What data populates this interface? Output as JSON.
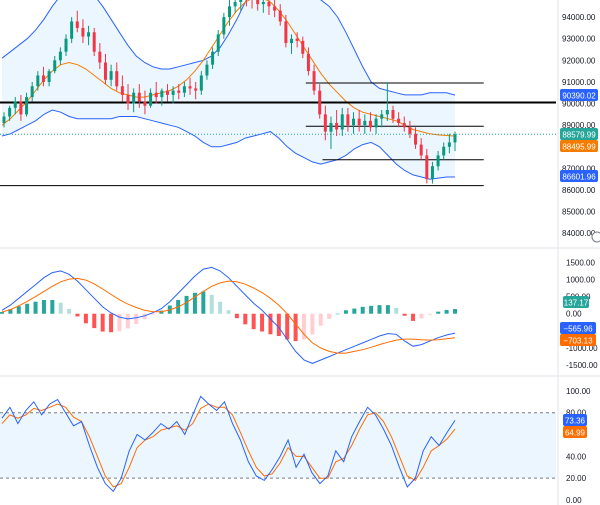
{
  "colors": {
    "up": "#089981",
    "down": "#f23645",
    "bb_line": "#2962ff",
    "bb_fill": "#e3f2fd",
    "ema": "#f57c00",
    "last_price_dotted": "#26a69a",
    "hline": "#000000",
    "macd_line": "#2962ff",
    "signal_line": "#ff6d00",
    "hist_up_strong": "#26a69a",
    "hist_up_weak": "#b2dfdb",
    "hist_down_strong": "#ff5252",
    "hist_down_weak": "#ffcdd2",
    "stoch_k": "#2962ff",
    "stoch_d": "#ff6d00",
    "stoch_band_fill": "#e3f2fd",
    "stoch_band_line": "#787b86",
    "axis_text": "#131722",
    "grid": "#f0f3fa"
  },
  "axis_labels": {
    "price": [
      "94000.00",
      "93000.00",
      "92000.00",
      "91000.00",
      "90000.00",
      "89000.00",
      "88000.00",
      "87000.00",
      "86000.00",
      "85000.00",
      "84000.00"
    ],
    "macd": [
      "1500.00",
      "1000.00",
      "500.00",
      "0.00",
      "-500.00",
      "-1000.00",
      "-1500.00"
    ],
    "stoch": [
      "100.00",
      "80.00",
      "60.00",
      "40.00",
      "20.00",
      "0.00"
    ]
  },
  "badges": {
    "bb_upper": "90390.02",
    "close": "88579.99",
    "ema": "88495.99",
    "bb_lower": "86601.96",
    "macd_hist": "137.17",
    "macd_line": "−565.96",
    "macd_signal": "−703.13",
    "stoch_k": "73.36",
    "stoch_d": "64.99"
  },
  "chart_data": [
    {
      "type": "candlestick",
      "panel": "price",
      "y_ticks": [
        94000,
        93000,
        92000,
        91000,
        90000,
        89000,
        88000,
        87000,
        86000,
        85000,
        84000
      ],
      "ylim": [
        83500,
        94700
      ],
      "last_close": 88579.99,
      "horizontal_levels": [
        {
          "y": 90050,
          "x_span": [
            0,
            1
          ],
          "weight": "thick"
        },
        {
          "y": 90950,
          "x_span": [
            0.55,
            0.87
          ],
          "weight": "thin"
        },
        {
          "y": 88950,
          "x_span": [
            0.55,
            0.87
          ],
          "weight": "thin"
        },
        {
          "y": 87400,
          "x_span": [
            0.58,
            0.87
          ],
          "weight": "thin"
        },
        {
          "y": 86200,
          "x_span": [
            0,
            0.87
          ],
          "weight": "thin"
        }
      ],
      "candles": [
        [
          89100,
          89600,
          88900,
          89400
        ],
        [
          89400,
          89900,
          89200,
          89800
        ],
        [
          89800,
          90300,
          89500,
          90100
        ],
        [
          90100,
          90400,
          89200,
          89500
        ],
        [
          89500,
          90500,
          89400,
          90300
        ],
        [
          90300,
          91000,
          90100,
          90800
        ],
        [
          90800,
          91500,
          90600,
          91300
        ],
        [
          91300,
          91700,
          90800,
          91000
        ],
        [
          91000,
          91600,
          90800,
          91500
        ],
        [
          91500,
          92200,
          91400,
          92000
        ],
        [
          92000,
          92600,
          91800,
          92400
        ],
        [
          92400,
          93200,
          92200,
          93000
        ],
        [
          93000,
          94000,
          92800,
          93800
        ],
        [
          93800,
          94300,
          93300,
          93500
        ],
        [
          93500,
          93900,
          92800,
          93100
        ],
        [
          93100,
          93600,
          92700,
          93300
        ],
        [
          93300,
          93500,
          92200,
          92400
        ],
        [
          92400,
          92800,
          91600,
          91900
        ],
        [
          91900,
          92300,
          90900,
          91100
        ],
        [
          91100,
          91800,
          90800,
          91500
        ],
        [
          91500,
          91900,
          90600,
          90800
        ],
        [
          90800,
          91300,
          90100,
          90400
        ],
        [
          90400,
          90900,
          89700,
          90000
        ],
        [
          90000,
          90700,
          89600,
          90500
        ],
        [
          90500,
          90900,
          89800,
          90100
        ],
        [
          90100,
          90600,
          89500,
          89900
        ],
        [
          89900,
          90700,
          89800,
          90500
        ],
        [
          90500,
          91000,
          90000,
          90300
        ],
        [
          90300,
          90700,
          89900,
          90600
        ],
        [
          90600,
          90900,
          90100,
          90400
        ],
        [
          90400,
          90800,
          90000,
          90600
        ],
        [
          90600,
          90900,
          90200,
          90500
        ],
        [
          90500,
          91000,
          90300,
          90800
        ],
        [
          90800,
          91200,
          90400,
          90700
        ],
        [
          90700,
          91000,
          90200,
          90600
        ],
        [
          90600,
          91500,
          90400,
          91300
        ],
        [
          91300,
          92000,
          91100,
          91800
        ],
        [
          91800,
          92600,
          91600,
          92400
        ],
        [
          92400,
          93400,
          92200,
          93200
        ],
        [
          93200,
          94200,
          93000,
          94000
        ],
        [
          94000,
          94800,
          93600,
          94500
        ],
        [
          94500,
          95000,
          94200,
          94700
        ],
        [
          94700,
          95200,
          94300,
          95000
        ],
        [
          95000,
          95300,
          94500,
          94900
        ],
        [
          94900,
          95200,
          94400,
          94800
        ],
        [
          94800,
          95100,
          94300,
          94600
        ],
        [
          94600,
          95000,
          94200,
          94700
        ],
        [
          94700,
          95000,
          94100,
          94500
        ],
        [
          94500,
          94800,
          94000,
          94300
        ],
        [
          94300,
          94600,
          93600,
          93800
        ],
        [
          93800,
          94100,
          92600,
          92800
        ],
        [
          92800,
          93200,
          92300,
          93000
        ],
        [
          93000,
          93300,
          92600,
          92900
        ],
        [
          92900,
          93100,
          92100,
          92300
        ],
        [
          92300,
          92600,
          91300,
          91500
        ],
        [
          91500,
          91800,
          90400,
          90600
        ],
        [
          90600,
          90900,
          89300,
          89500
        ],
        [
          89500,
          89900,
          88300,
          88700
        ],
        [
          88700,
          89400,
          87900,
          89100
        ],
        [
          89100,
          89700,
          88500,
          88800
        ],
        [
          88800,
          89800,
          88500,
          89500
        ],
        [
          89500,
          89800,
          88700,
          89000
        ],
        [
          89000,
          89600,
          88600,
          89300
        ],
        [
          89300,
          89700,
          88700,
          89000
        ],
        [
          89000,
          89500,
          88600,
          89200
        ],
        [
          89200,
          89600,
          88700,
          88900
        ],
        [
          88900,
          89500,
          88600,
          89300
        ],
        [
          89300,
          89700,
          88900,
          89500
        ],
        [
          89500,
          91000,
          89200,
          89700
        ],
        [
          89700,
          89900,
          89100,
          89300
        ],
        [
          89300,
          89600,
          88900,
          89100
        ],
        [
          89100,
          89400,
          88700,
          88900
        ],
        [
          88900,
          89200,
          88400,
          88600
        ],
        [
          88600,
          88900,
          87900,
          88100
        ],
        [
          88100,
          88400,
          87400,
          87600
        ],
        [
          87600,
          87900,
          86300,
          86500
        ],
        [
          86500,
          87300,
          86300,
          87100
        ],
        [
          87100,
          87800,
          86900,
          87600
        ],
        [
          87600,
          88200,
          87400,
          88000
        ],
        [
          88000,
          88600,
          87700,
          88200
        ],
        [
          88200,
          88700,
          87800,
          88580
        ]
      ],
      "bollinger_upper": [
        92100,
        92400,
        92700,
        93000,
        93400,
        93900,
        94500,
        95000,
        95300,
        95400,
        95300,
        95000,
        94500,
        93900,
        93300,
        92700,
        92200,
        91900,
        91700,
        91600,
        91600,
        91700,
        91800,
        91900,
        92000,
        92200,
        92600,
        93200,
        93900,
        94700,
        95400,
        95800,
        95900,
        95900,
        95800,
        95600,
        95400,
        95100,
        94800,
        94500,
        94000,
        93300,
        92500,
        91700,
        91000,
        90700,
        90600,
        90500,
        90400,
        90400,
        90400,
        90500,
        90500,
        90500,
        90390
      ],
      "bollinger_lower": [
        88500,
        88600,
        88800,
        89000,
        89200,
        89500,
        89700,
        89600,
        89400,
        89300,
        89300,
        89300,
        89300,
        89300,
        89400,
        89400,
        89400,
        89300,
        89200,
        89100,
        89000,
        88900,
        88700,
        88500,
        88200,
        88000,
        88000,
        88100,
        88200,
        88400,
        88500,
        88600,
        88700,
        88400,
        88000,
        87700,
        87500,
        87300,
        87200,
        87300,
        87400,
        87600,
        87900,
        88100,
        88200,
        88000,
        87600,
        87200,
        86900,
        86700,
        86600,
        86500,
        86550,
        86600,
        86602
      ],
      "ema": [
        89000,
        89300,
        89700,
        90100,
        90600,
        91100,
        91500,
        91800,
        91900,
        91800,
        91600,
        91300,
        91000,
        90700,
        90500,
        90400,
        90300,
        90300,
        90400,
        90500,
        90600,
        90800,
        91100,
        91500,
        92000,
        92600,
        93200,
        93800,
        94300,
        94700,
        94900,
        94900,
        94700,
        94300,
        93800,
        93200,
        92600,
        92000,
        91400,
        90900,
        90500,
        90100,
        89800,
        89600,
        89500,
        89400,
        89300,
        89200,
        89000,
        88800,
        88700,
        88600,
        88550,
        88520,
        88496
      ]
    },
    {
      "type": "macd",
      "panel": "macd",
      "y_ticks": [
        1500,
        1000,
        500,
        0,
        -500,
        -1000,
        -1500
      ],
      "ylim": [
        -1700,
        1800
      ],
      "macd": [
        100,
        250,
        450,
        650,
        850,
        1050,
        1200,
        1250,
        1150,
        950,
        700,
        450,
        200,
        20,
        -100,
        -150,
        -120,
        -60,
        30,
        150,
        350,
        600,
        850,
        1100,
        1300,
        1350,
        1250,
        1050,
        800,
        550,
        300,
        100,
        -150,
        -400,
        -750,
        -1100,
        -1350,
        -1450,
        -1350,
        -1250,
        -1150,
        -1050,
        -950,
        -850,
        -750,
        -650,
        -580,
        -600,
        -800,
        -950,
        -900,
        -800,
        -700,
        -620,
        -566
      ],
      "signal": [
        50,
        120,
        230,
        360,
        500,
        650,
        800,
        930,
        1010,
        1030,
        980,
        870,
        720,
        560,
        410,
        280,
        180,
        100,
        60,
        60,
        110,
        200,
        330,
        490,
        650,
        800,
        900,
        950,
        930,
        860,
        750,
        620,
        450,
        250,
        0,
        -300,
        -600,
        -850,
        -1000,
        -1100,
        -1150,
        -1150,
        -1100,
        -1050,
        -980,
        -900,
        -830,
        -770,
        -740,
        -740,
        -760,
        -770,
        -760,
        -730,
        -703
      ]
    },
    {
      "type": "stochastic",
      "panel": "stoch",
      "y_ticks": [
        100,
        80,
        60,
        40,
        20,
        0
      ],
      "ylim": [
        0,
        110
      ],
      "bands": [
        20,
        80
      ],
      "k": [
        75,
        85,
        70,
        82,
        90,
        78,
        88,
        92,
        80,
        68,
        72,
        50,
        30,
        15,
        8,
        20,
        45,
        60,
        55,
        62,
        70,
        65,
        72,
        60,
        78,
        95,
        88,
        82,
        90,
        70,
        55,
        35,
        22,
        18,
        28,
        40,
        55,
        30,
        42,
        25,
        15,
        22,
        45,
        35,
        58,
        72,
        85,
        78,
        65,
        50,
        30,
        12,
        20,
        45,
        58,
        50,
        62,
        73
      ],
      "d": [
        70,
        78,
        75,
        78,
        84,
        82,
        85,
        88,
        85,
        76,
        72,
        58,
        40,
        22,
        12,
        15,
        30,
        48,
        55,
        58,
        64,
        66,
        68,
        64,
        70,
        84,
        88,
        85,
        85,
        78,
        62,
        45,
        30,
        22,
        24,
        34,
        48,
        40,
        40,
        30,
        20,
        20,
        35,
        38,
        50,
        65,
        78,
        80,
        72,
        58,
        40,
        22,
        18,
        30,
        45,
        50,
        56,
        65
      ]
    }
  ]
}
